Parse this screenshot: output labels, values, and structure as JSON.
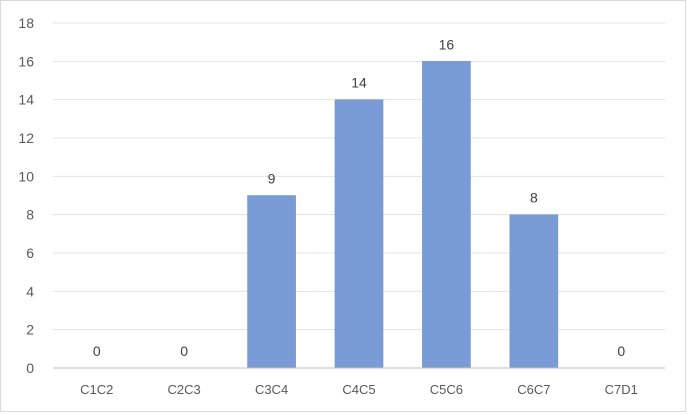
{
  "chart_data": {
    "type": "bar",
    "title": "",
    "xlabel": "",
    "ylabel": "",
    "categories": [
      "C1C2",
      "C2C3",
      "C3C4",
      "C4C5",
      "C5C6",
      "C6C7",
      "C7D1"
    ],
    "series": [
      {
        "values": [
          0,
          0,
          9,
          14,
          16,
          8,
          0
        ]
      }
    ],
    "ylim": [
      0,
      18
    ],
    "yticks": [
      0,
      2,
      4,
      6,
      8,
      10,
      12,
      14,
      16,
      18
    ],
    "grid": true,
    "legend": "none",
    "data_labels": true,
    "colors": {
      "bar": "#7a9cd6",
      "bar_edge": "#6f8fcb",
      "grid": "#e3e3e3",
      "axis": "#bfbfbf"
    }
  }
}
